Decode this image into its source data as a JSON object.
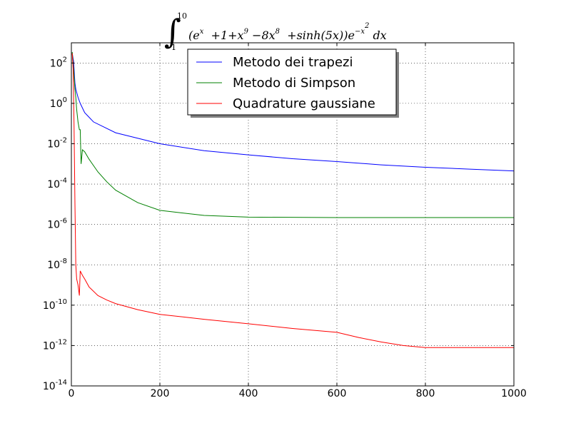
{
  "chart_data": {
    "type": "line",
    "title": {
      "upper": "10",
      "lower": "1",
      "e": "e",
      "x": "x",
      "p1": "+1",
      "p2": "+x",
      "e9": "9",
      "p3": "−8x",
      "e8": "8",
      "p4": "+sinh(5x))",
      "e2": "−x",
      "sq": "2",
      "dx": "dx"
    },
    "xlabel": "",
    "ylabel": "",
    "x_axis": {
      "scale": "linear",
      "range": [
        0,
        1000
      ],
      "ticks": [
        0,
        200,
        400,
        600,
        800,
        1000
      ]
    },
    "y_axis": {
      "scale": "log",
      "range": [
        1e-14,
        1000
      ],
      "tick_mantissa": "10",
      "tick_exponents": [
        "2",
        "0",
        "-2",
        "-4",
        "-6",
        "-8",
        "-10",
        "-12",
        "-14"
      ]
    },
    "grid": true,
    "legend_position": "top-center",
    "series": [
      {
        "name": "Metodo dei trapezi",
        "color": "#0000ff",
        "x": [
          2,
          5,
          8,
          10,
          15,
          20,
          30,
          50,
          100,
          200,
          300,
          400,
          500,
          600,
          700,
          800,
          900,
          1000
        ],
        "y": [
          300,
          120,
          10,
          5,
          2,
          1,
          0.35,
          0.12,
          0.035,
          0.01,
          0.0045,
          0.0028,
          0.0018,
          0.0013,
          0.0009,
          0.00068,
          0.00055,
          0.00045
        ]
      },
      {
        "name": "Metodo di Simpson",
        "color": "#008000",
        "x": [
          2,
          5,
          8,
          10,
          12,
          15,
          18,
          20,
          22,
          25,
          30,
          40,
          60,
          80,
          100,
          150,
          200,
          300,
          400,
          600,
          800,
          1000
        ],
        "y": [
          350,
          50,
          5,
          2,
          0.5,
          0.12,
          0.05,
          0.05,
          0.001,
          0.005,
          0.004,
          0.0017,
          0.0004,
          0.00013,
          5e-05,
          1.2e-05,
          5e-06,
          2.8e-06,
          2.3e-06,
          2.2e-06,
          2.2e-06,
          2.2e-06
        ]
      },
      {
        "name": "Quadrature gaussiane",
        "color": "#ff0000",
        "x": [
          2,
          4,
          6,
          8,
          10,
          12,
          15,
          18,
          20,
          25,
          30,
          40,
          60,
          80,
          100,
          150,
          200,
          300,
          400,
          500,
          600,
          650,
          700,
          750,
          800,
          850,
          900,
          950,
          1000
        ],
        "y": [
          300,
          50,
          0.1,
          1e-05,
          1e-08,
          2e-09,
          1e-09,
          3e-10,
          5e-09,
          3e-09,
          2e-09,
          8e-10,
          3e-10,
          1.8e-10,
          1.2e-10,
          6e-11,
          3.5e-11,
          2e-11,
          1.2e-11,
          7e-12,
          4.5e-12,
          2.5e-12,
          1.5e-12,
          1e-12,
          8e-13,
          8e-13,
          8e-13,
          8e-13,
          8e-13
        ]
      }
    ]
  }
}
